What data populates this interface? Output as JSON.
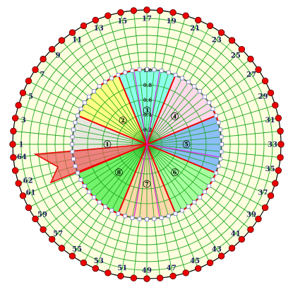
{
  "diagram": {
    "colors": {
      "background": "#ffffe0",
      "grid": "#22aa22",
      "outer_ring": "#000000",
      "dot": "#ee0000",
      "boundary": "#ee0000",
      "inner_ring_squares": "#8888cc"
    },
    "outer_numbers": [
      "1",
      "3",
      "5",
      "7",
      "9",
      "11",
      "13",
      "15",
      "17",
      "19",
      "21",
      "23",
      "25",
      "27",
      "29",
      "31",
      "33",
      "35",
      "37",
      "39",
      "41",
      "43",
      "45",
      "47",
      "49",
      "51",
      "53",
      "55",
      "57",
      "59",
      "61",
      "62",
      "64"
    ],
    "scale_labels": [
      "1.0",
      "0.8",
      "0.6",
      "0.4",
      "0.2"
    ],
    "sectors": [
      {
        "label": "1",
        "color": "#dddddd"
      },
      {
        "label": "2",
        "color": "#ffff66"
      },
      {
        "label": "3",
        "color": "#66ffee"
      },
      {
        "label": "4",
        "color": "#ffccee"
      },
      {
        "label": "5",
        "color": "#66aaff"
      },
      {
        "label": "6",
        "color": "#88ff88"
      },
      {
        "label": "7",
        "color": "#ffcc99"
      },
      {
        "label": "8",
        "color": "#44ee44"
      }
    ]
  }
}
